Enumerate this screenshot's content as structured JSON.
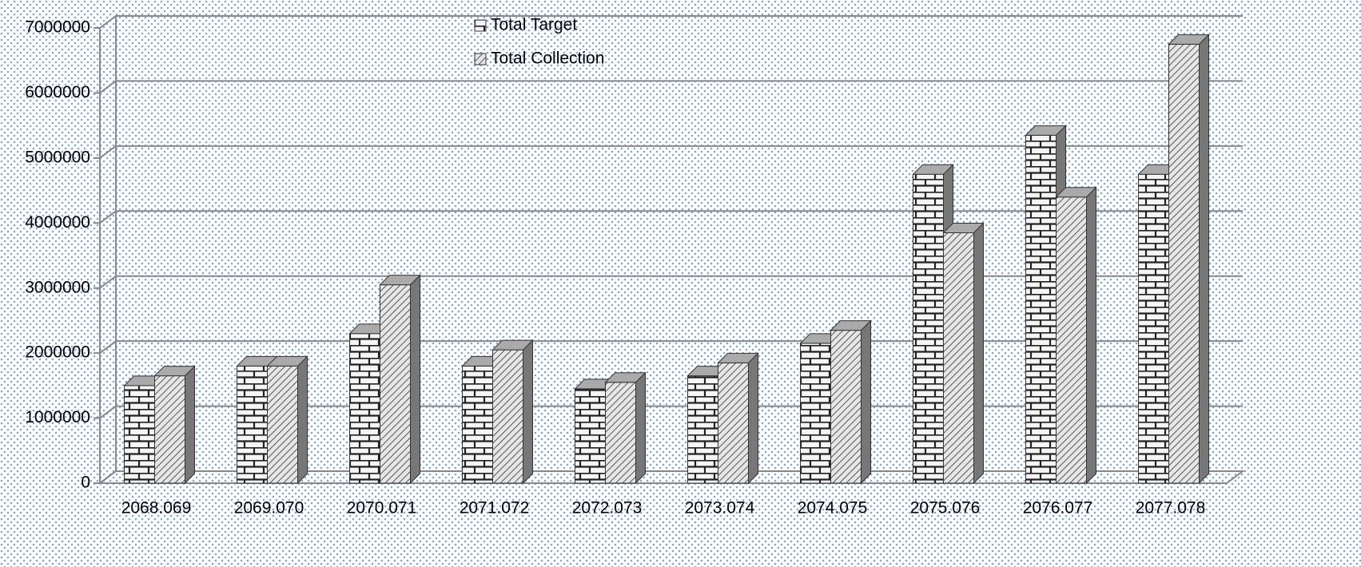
{
  "chart_data": {
    "type": "bar3d",
    "categories": [
      "2068.069",
      "2069.070",
      "2070.071",
      "2071.072",
      "2072.073",
      "2073.074",
      "2074.075",
      "2075.076",
      "2076.077",
      "2077.078"
    ],
    "series": [
      {
        "name": "Total Target",
        "pattern": "brick",
        "values": [
          1500000,
          1800000,
          2300000,
          1800000,
          1450000,
          1650000,
          2150000,
          4750000,
          5350000,
          4750000
        ]
      },
      {
        "name": "Total Collection",
        "pattern": "diagonal",
        "values": [
          1650000,
          1800000,
          3050000,
          2050000,
          1550000,
          1850000,
          2350000,
          3850000,
          4400000,
          6750000
        ]
      }
    ],
    "ylim": [
      0,
      7000000
    ],
    "yticks": [
      0,
      1000000,
      2000000,
      3000000,
      4000000,
      5000000,
      6000000,
      7000000
    ],
    "grid": true,
    "legend": "top"
  }
}
